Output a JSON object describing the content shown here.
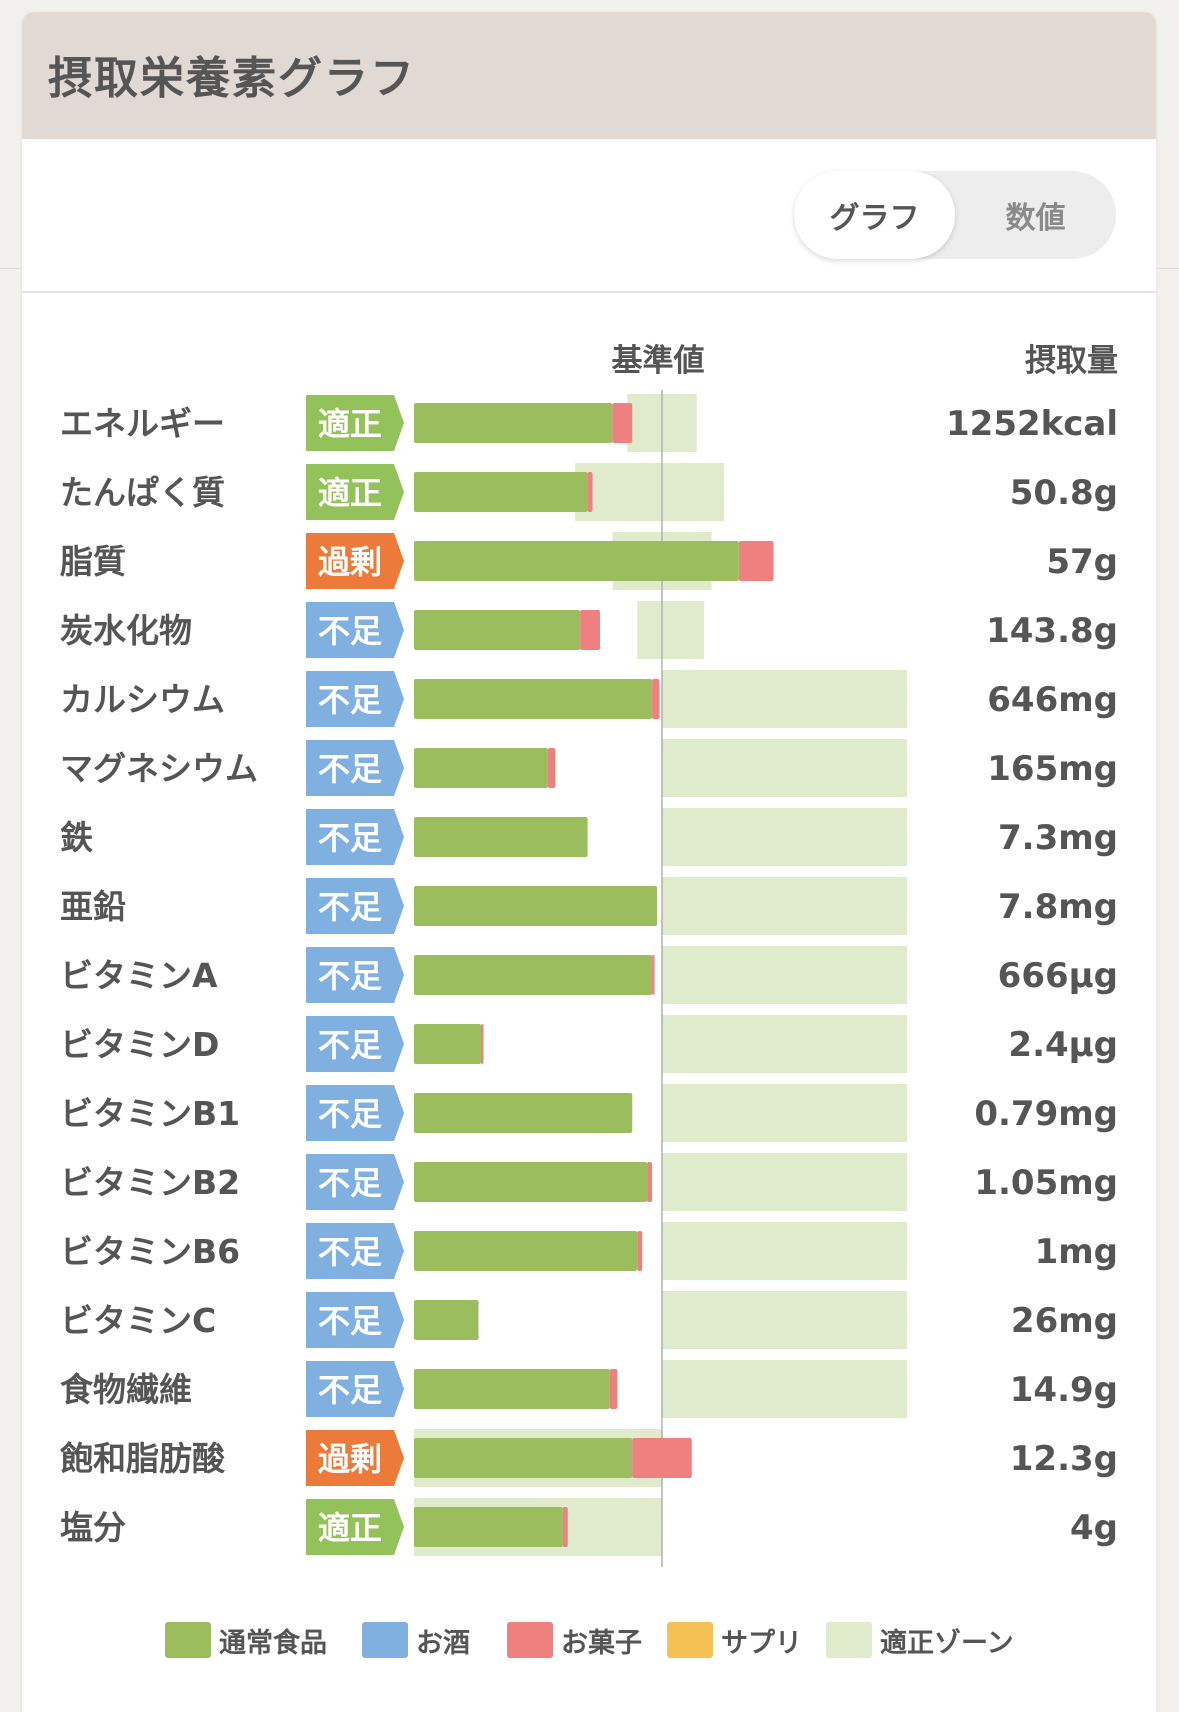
{
  "header": {
    "title": "摂取栄養素グラフ"
  },
  "view_toggle": {
    "graph_label": "グラフ",
    "values_label": "数値",
    "active": "graph"
  },
  "columns": {
    "reference_label": "基準値",
    "intake_label": "摂取量"
  },
  "colors": {
    "normal_food": "#9bbd5e",
    "alcohol": "#7fb0df",
    "snacks": "#ee8080",
    "supplement": "#f5c155",
    "proper_zone": "#e0ebcc",
    "status_proper": "#93c25b",
    "status_excess": "#ec7a3b",
    "status_short": "#7fb0df"
  },
  "legend": [
    {
      "label": "通常食品",
      "color": "#9bbd5e"
    },
    {
      "label": "お酒",
      "color": "#7fb0df"
    },
    {
      "label": "お菓子",
      "color": "#ee8080"
    },
    {
      "label": "サプリ",
      "color": "#f5c155"
    },
    {
      "label": "適正ゾーン",
      "color": "#e0ebcc"
    }
  ],
  "chart_data": {
    "type": "bar",
    "orientation": "horizontal",
    "stacked": true,
    "unit": "percent of reference value",
    "reference_value": 100,
    "xlim": [
      0,
      200
    ],
    "categories": [
      "エネルギー",
      "たんぱく質",
      "脂質",
      "炭水化物",
      "カルシウム",
      "マグネシウム",
      "鉄",
      "亜鉛",
      "ビタミンA",
      "ビタミンD",
      "ビタミンB1",
      "ビタミンB2",
      "ビタミンB6",
      "ビタミンC",
      "食物繊維",
      "飽和脂肪酸",
      "塩分"
    ],
    "status": [
      "適正",
      "適正",
      "過剰",
      "不足",
      "不足",
      "不足",
      "不足",
      "不足",
      "不足",
      "不足",
      "不足",
      "不足",
      "不足",
      "不足",
      "不足",
      "過剰",
      "適正"
    ],
    "intake": [
      "1252kcal",
      "50.8g",
      "57g",
      "143.8g",
      "646mg",
      "165mg",
      "7.3mg",
      "7.8mg",
      "666µg",
      "2.4µg",
      "0.79mg",
      "1.05mg",
      "1mg",
      "26mg",
      "14.9g",
      "12.3g",
      "4g"
    ],
    "series": [
      {
        "name": "通常食品",
        "values": [
          80,
          70,
          131,
          67,
          96,
          54,
          70,
          98,
          96,
          27,
          88,
          94,
          90,
          26,
          79,
          88,
          60
        ]
      },
      {
        "name": "お酒",
        "values": [
          0,
          0,
          0,
          0,
          0,
          0,
          0,
          0,
          0,
          0,
          0,
          0,
          0,
          0,
          0,
          0,
          0
        ]
      },
      {
        "name": "お菓子",
        "values": [
          8,
          2,
          14,
          8,
          3,
          3,
          0,
          0,
          1,
          1,
          0,
          2,
          2,
          0,
          3,
          24,
          2
        ]
      },
      {
        "name": "サプリ",
        "values": [
          0,
          0,
          0,
          0,
          0,
          0,
          0,
          0,
          0,
          0,
          0,
          0,
          0,
          0,
          0,
          0,
          0
        ]
      }
    ],
    "proper_zone": [
      [
        86,
        114
      ],
      [
        65,
        125
      ],
      [
        80,
        120
      ],
      [
        90,
        117
      ],
      [
        100,
        200
      ],
      [
        100,
        200
      ],
      [
        100,
        200
      ],
      [
        100,
        200
      ],
      [
        100,
        200
      ],
      [
        100,
        200
      ],
      [
        100,
        200
      ],
      [
        100,
        200
      ],
      [
        100,
        200
      ],
      [
        100,
        200
      ],
      [
        100,
        200
      ],
      [
        0,
        100
      ],
      [
        0,
        100
      ]
    ]
  }
}
